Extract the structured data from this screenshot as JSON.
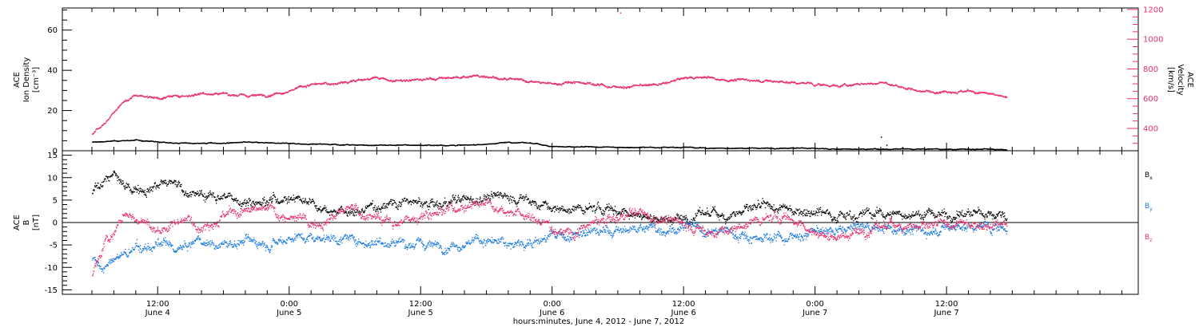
{
  "chart_data": [
    {
      "type": "scatter",
      "panel": "top",
      "ylabel_lines": [
        "ACE",
        "Ion Density",
        "[cm⁻³]"
      ],
      "y2label_lines": [
        "ACE",
        "Velocity",
        "[km/s]"
      ],
      "ylim": [
        0,
        71
      ],
      "y2lim": [
        250,
        1210
      ],
      "yticks": [
        0,
        20,
        40,
        60
      ],
      "y2ticks": [
        400,
        600,
        800,
        1000,
        1200
      ],
      "y2color": "#e8306a",
      "series": [
        {
          "color": "#000000",
          "axis": "left",
          "x_hours": [
            0,
            2,
            4,
            6,
            8,
            10,
            12,
            14,
            16,
            18,
            20,
            22,
            24,
            26,
            28,
            30,
            32,
            34,
            36,
            38,
            40,
            42,
            44,
            46,
            48,
            50,
            52,
            54,
            56,
            58,
            60,
            62,
            64,
            66,
            68,
            70,
            72,
            74,
            76,
            78,
            80,
            82,
            83.5
          ],
          "values": [
            4.5,
            5,
            5.5,
            4.5,
            4,
            4,
            4,
            4.5,
            4,
            4,
            3.5,
            3.5,
            3,
            3,
            3,
            3,
            3,
            3,
            3.5,
            4.5,
            4,
            2.5,
            2,
            2,
            2,
            2,
            2,
            2,
            1.5,
            1.5,
            1.5,
            1.5,
            1.5,
            1.5,
            1,
            1,
            1,
            1,
            1,
            1,
            1,
            1,
            1
          ]
        },
        {
          "color": "#e8306a",
          "axis": "right",
          "x_hours": [
            0,
            1,
            2,
            3,
            4,
            6,
            8,
            10,
            12,
            14,
            16,
            18,
            20,
            22,
            24,
            26,
            28,
            30,
            32,
            34,
            36,
            38,
            40,
            42,
            44,
            46,
            48,
            50,
            52,
            54,
            56,
            58,
            60,
            62,
            64,
            66,
            68,
            70,
            72,
            74,
            76,
            78,
            80,
            82,
            83.5
          ],
          "values": [
            370,
            430,
            520,
            590,
            630,
            610,
            620,
            640,
            640,
            620,
            630,
            660,
            700,
            700,
            730,
            740,
            720,
            730,
            740,
            750,
            760,
            730,
            720,
            700,
            720,
            700,
            680,
            690,
            700,
            740,
            750,
            730,
            730,
            720,
            710,
            700,
            690,
            700,
            710,
            680,
            650,
            660,
            650,
            630,
            610
          ]
        }
      ],
      "outlier_points": [
        {
          "x_hours": 48.2,
          "y_right": 1180
        },
        {
          "x_hours": 72.0,
          "y_left": 7.0
        },
        {
          "x_hours": 72.5,
          "y_left": 3.0
        }
      ]
    },
    {
      "type": "scatter",
      "panel": "bottom",
      "ylabel_lines": [
        "ACE",
        "B",
        "[nT]"
      ],
      "ylim": [
        -16,
        16
      ],
      "yticks": [
        -15,
        -10,
        -5,
        0,
        5,
        10,
        15
      ],
      "zero_line": true,
      "series": [
        {
          "name": "Bx",
          "legend": {
            "base": "B",
            "sub": "x"
          },
          "color": "#000000",
          "x_hours": [
            0,
            1,
            2,
            3,
            4,
            6,
            8,
            10,
            12,
            14,
            16,
            18,
            20,
            22,
            24,
            26,
            28,
            30,
            32,
            34,
            36,
            38,
            40,
            42,
            44,
            46,
            48,
            50,
            52,
            54,
            56,
            58,
            60,
            62,
            64,
            66,
            68,
            70,
            72,
            74,
            76,
            78,
            80,
            82,
            83.5
          ],
          "values": [
            6,
            10,
            11,
            7,
            8,
            9,
            8,
            6,
            6,
            5,
            5,
            6,
            5,
            3,
            2,
            4,
            5,
            4,
            4,
            5,
            6,
            6,
            5,
            3,
            3,
            3,
            3,
            2,
            1,
            1,
            2,
            2,
            3,
            3,
            3,
            3,
            2,
            2,
            2,
            2,
            2,
            2,
            2,
            2,
            2
          ]
        },
        {
          "name": "By",
          "legend": {
            "base": "B",
            "sub": "y"
          },
          "color": "#1a7ae0",
          "x_hours": [
            0,
            1,
            2,
            3,
            4,
            6,
            8,
            10,
            12,
            14,
            16,
            18,
            20,
            22,
            24,
            26,
            28,
            30,
            32,
            34,
            36,
            38,
            40,
            42,
            44,
            46,
            48,
            50,
            52,
            54,
            56,
            58,
            60,
            62,
            64,
            66,
            68,
            70,
            72,
            74,
            76,
            78,
            80,
            82,
            83.5
          ],
          "values": [
            -8,
            -11,
            -8,
            -7,
            -6,
            -5,
            -6,
            -4,
            -5,
            -4,
            -4,
            -3,
            -3,
            -3,
            -4,
            -4,
            -4,
            -5,
            -5,
            -4,
            -4,
            -5,
            -4,
            -3,
            -3,
            -2,
            -2,
            -1,
            -1,
            -1,
            -2,
            -2,
            -3,
            -3,
            -3,
            -2,
            -2,
            -1,
            -1,
            -1,
            -2,
            -1,
            -1,
            -1,
            -1
          ]
        },
        {
          "name": "Bz",
          "legend": {
            "base": "B",
            "sub": "z"
          },
          "color": "#e8306a",
          "x_hours": [
            0,
            1,
            2,
            3,
            4,
            6,
            8,
            10,
            12,
            14,
            16,
            18,
            20,
            22,
            24,
            26,
            28,
            30,
            32,
            34,
            36,
            38,
            40,
            42,
            44,
            46,
            48,
            50,
            52,
            54,
            56,
            58,
            60,
            62,
            64,
            66,
            68,
            70,
            72,
            74,
            76,
            78,
            80,
            82,
            83.5
          ],
          "values": [
            -12,
            -5,
            -2,
            2,
            1,
            -2,
            1,
            0,
            2,
            2,
            3,
            1,
            0,
            2,
            3,
            1,
            0,
            2,
            3,
            4,
            5,
            3,
            1,
            -1,
            -2,
            0,
            1,
            2,
            1,
            0,
            -2,
            -2,
            0,
            1,
            1,
            -2,
            -3,
            -2,
            -1,
            0,
            -1,
            -1,
            0,
            0,
            0
          ]
        }
      ]
    }
  ],
  "x_axis": {
    "range_hours": [
      -2.7,
      95.5
    ],
    "start": "June 4, 2012 06:00",
    "major_ticks": [
      {
        "x_hours": 6,
        "time": "12:00",
        "date": "June 4"
      },
      {
        "x_hours": 18,
        "time": "0:00",
        "date": "June 5"
      },
      {
        "x_hours": 30,
        "time": "12:00",
        "date": "June 5"
      },
      {
        "x_hours": 42,
        "time": "0:00",
        "date": "June 6"
      },
      {
        "x_hours": 54,
        "time": "12:00",
        "date": "June 6"
      },
      {
        "x_hours": 66,
        "time": "0:00",
        "date": "June 7"
      },
      {
        "x_hours": 78,
        "time": "12:00",
        "date": "June 7"
      }
    ],
    "title": "hours:minutes, June  4, 2012 - June  7, 2012"
  }
}
